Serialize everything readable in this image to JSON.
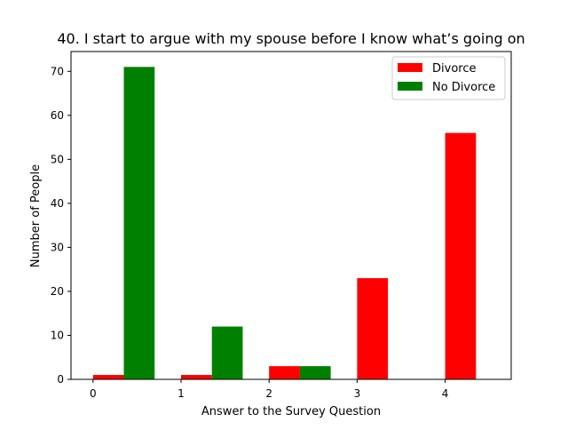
{
  "chart_data": {
    "type": "bar",
    "title": "40. I start to argue with my spouse before I know what’s going on",
    "xlabel": "Answer to the Survey Question",
    "ylabel": "Number of People",
    "categories": [
      "0",
      "1",
      "2",
      "3",
      "4"
    ],
    "x": [
      0,
      1,
      2,
      3,
      4
    ],
    "series": [
      {
        "name": "Divorce",
        "color": "#ff0000",
        "values": [
          1,
          1,
          3,
          23,
          56
        ]
      },
      {
        "name": "No Divorce",
        "color": "#008000",
        "values": [
          71,
          12,
          3,
          0,
          0
        ]
      }
    ],
    "xlim": [
      -0.25,
      4.75
    ],
    "ylim": [
      0,
      74.5
    ],
    "yticks": [
      0,
      10,
      20,
      30,
      40,
      50,
      60,
      70
    ],
    "grid": false,
    "legend": "top-right"
  }
}
